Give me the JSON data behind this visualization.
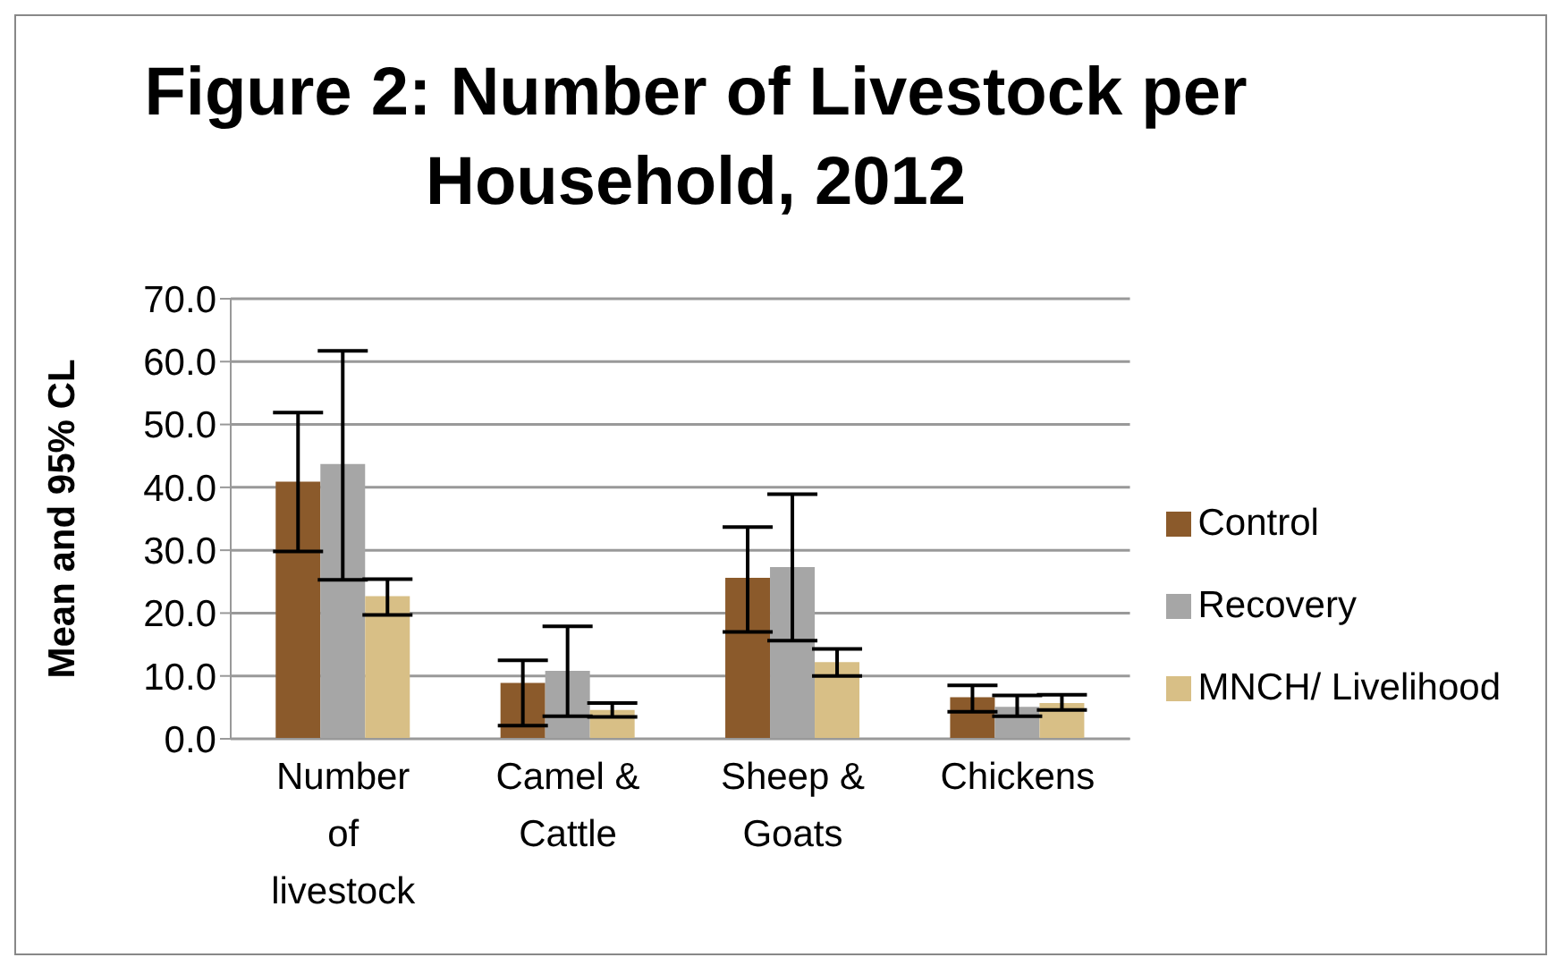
{
  "chart_data": {
    "type": "bar",
    "title": "Figure 2: Number of Livestock per Household, 2012",
    "ylabel": "Mean and 95% CL",
    "categories": [
      "Number of livestock",
      "Camel & Cattle",
      "Sheep & Goats",
      "Chickens"
    ],
    "series": [
      {
        "name": "Control",
        "color": "#8b5a2b",
        "values": [
          40.9,
          8.9,
          25.6,
          6.6
        ],
        "errors": [
          [
            29.8,
            51.9
          ],
          [
            2.1,
            12.5
          ],
          [
            17.0,
            33.7
          ],
          [
            4.3,
            8.5
          ]
        ]
      },
      {
        "name": "Recovery",
        "color": "#a6a6a6",
        "values": [
          43.7,
          10.8,
          27.3,
          5.1
        ],
        "errors": [
          [
            25.3,
            61.7
          ],
          [
            3.6,
            17.9
          ],
          [
            15.6,
            38.9
          ],
          [
            3.6,
            6.9
          ]
        ]
      },
      {
        "name": "MNCH/ Livelihood",
        "color": "#d8bf86",
        "values": [
          22.7,
          4.6,
          12.2,
          5.7
        ],
        "errors": [
          [
            19.7,
            25.4
          ],
          [
            3.5,
            5.7
          ],
          [
            10.0,
            14.3
          ],
          [
            4.6,
            7.0
          ]
        ]
      }
    ],
    "ylim": [
      0,
      70
    ],
    "yticks": [
      {
        "value": 0,
        "label": "0.0"
      },
      {
        "value": 10,
        "label": "10.0"
      },
      {
        "value": 20,
        "label": "20.0"
      },
      {
        "value": 30,
        "label": "30.0"
      },
      {
        "value": 40,
        "label": "40.0"
      },
      {
        "value": 50,
        "label": "50.0"
      },
      {
        "value": 60,
        "label": "60.0"
      },
      {
        "value": 70,
        "label": "70.0"
      }
    ],
    "grid": "y",
    "legend": "right"
  }
}
